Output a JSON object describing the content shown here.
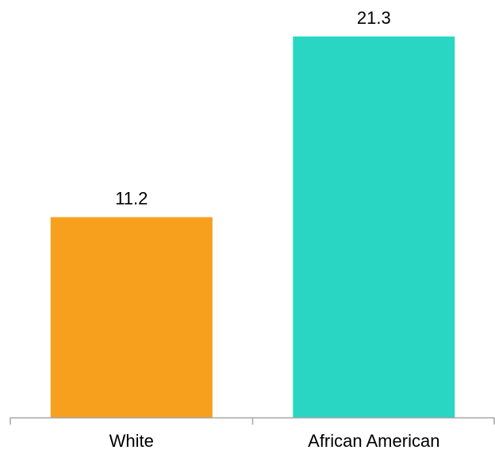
{
  "chart_data": {
    "type": "bar",
    "categories": [
      "White",
      "African American"
    ],
    "values": [
      11.2,
      21.3
    ],
    "data_labels": [
      "11.2",
      "21.3"
    ],
    "colors": [
      "#F7A01E",
      "#28D6C3"
    ],
    "axis_color": "#A6A6A6",
    "title": "",
    "xlabel": "",
    "ylabel": "",
    "ylim": [
      0,
      21.3
    ],
    "grid": false,
    "legend": "none"
  }
}
